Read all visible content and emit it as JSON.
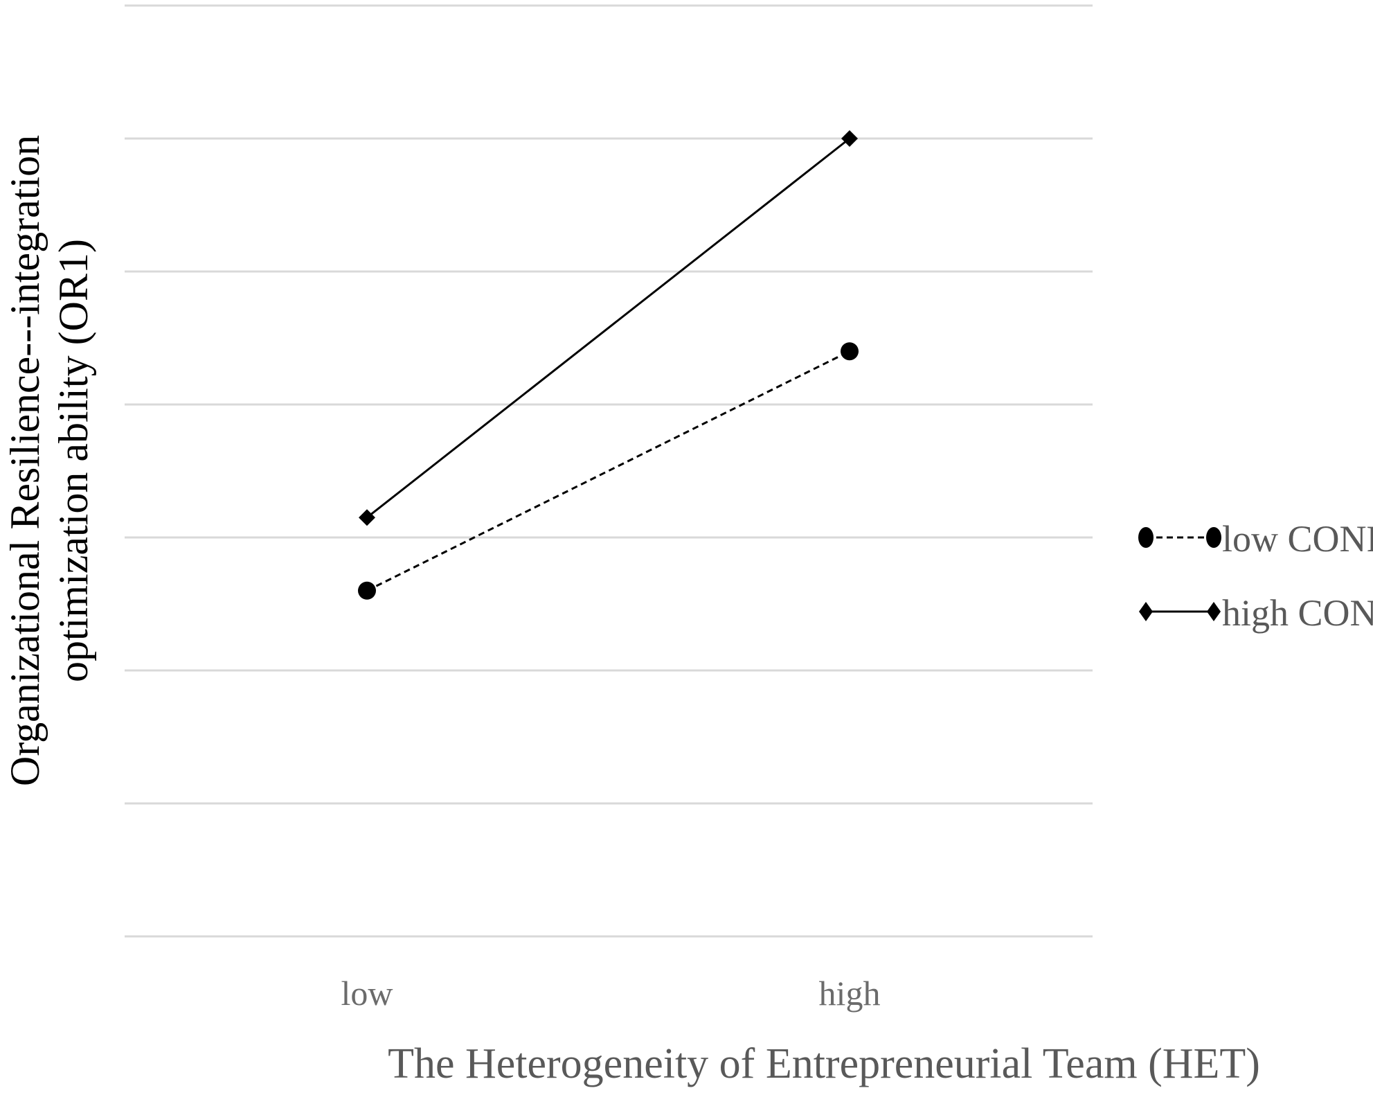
{
  "chart_data": {
    "type": "line",
    "title": "",
    "xlabel": "The Heterogeneity of Entrepreneurial Team (HET)",
    "ylabel": "Organizational Resilience---integration optimization ability (OR1)",
    "ylabel_lines": [
      "Organizational Resilience---integration",
      "optimization ability (OR1)"
    ],
    "categories": [
      "low",
      "high"
    ],
    "ylim": [
      0,
      7
    ],
    "grid": true,
    "legend_position": "right",
    "series": [
      {
        "name": "low CONF",
        "values": [
          2.6,
          4.4
        ],
        "line_style": "dashed",
        "marker": "circle",
        "color": "#000000"
      },
      {
        "name": "high CONF",
        "values": [
          3.15,
          6.0
        ],
        "line_style": "solid",
        "marker": "diamond",
        "color": "#000000"
      }
    ],
    "gridline_color": "#d9d9d9"
  }
}
